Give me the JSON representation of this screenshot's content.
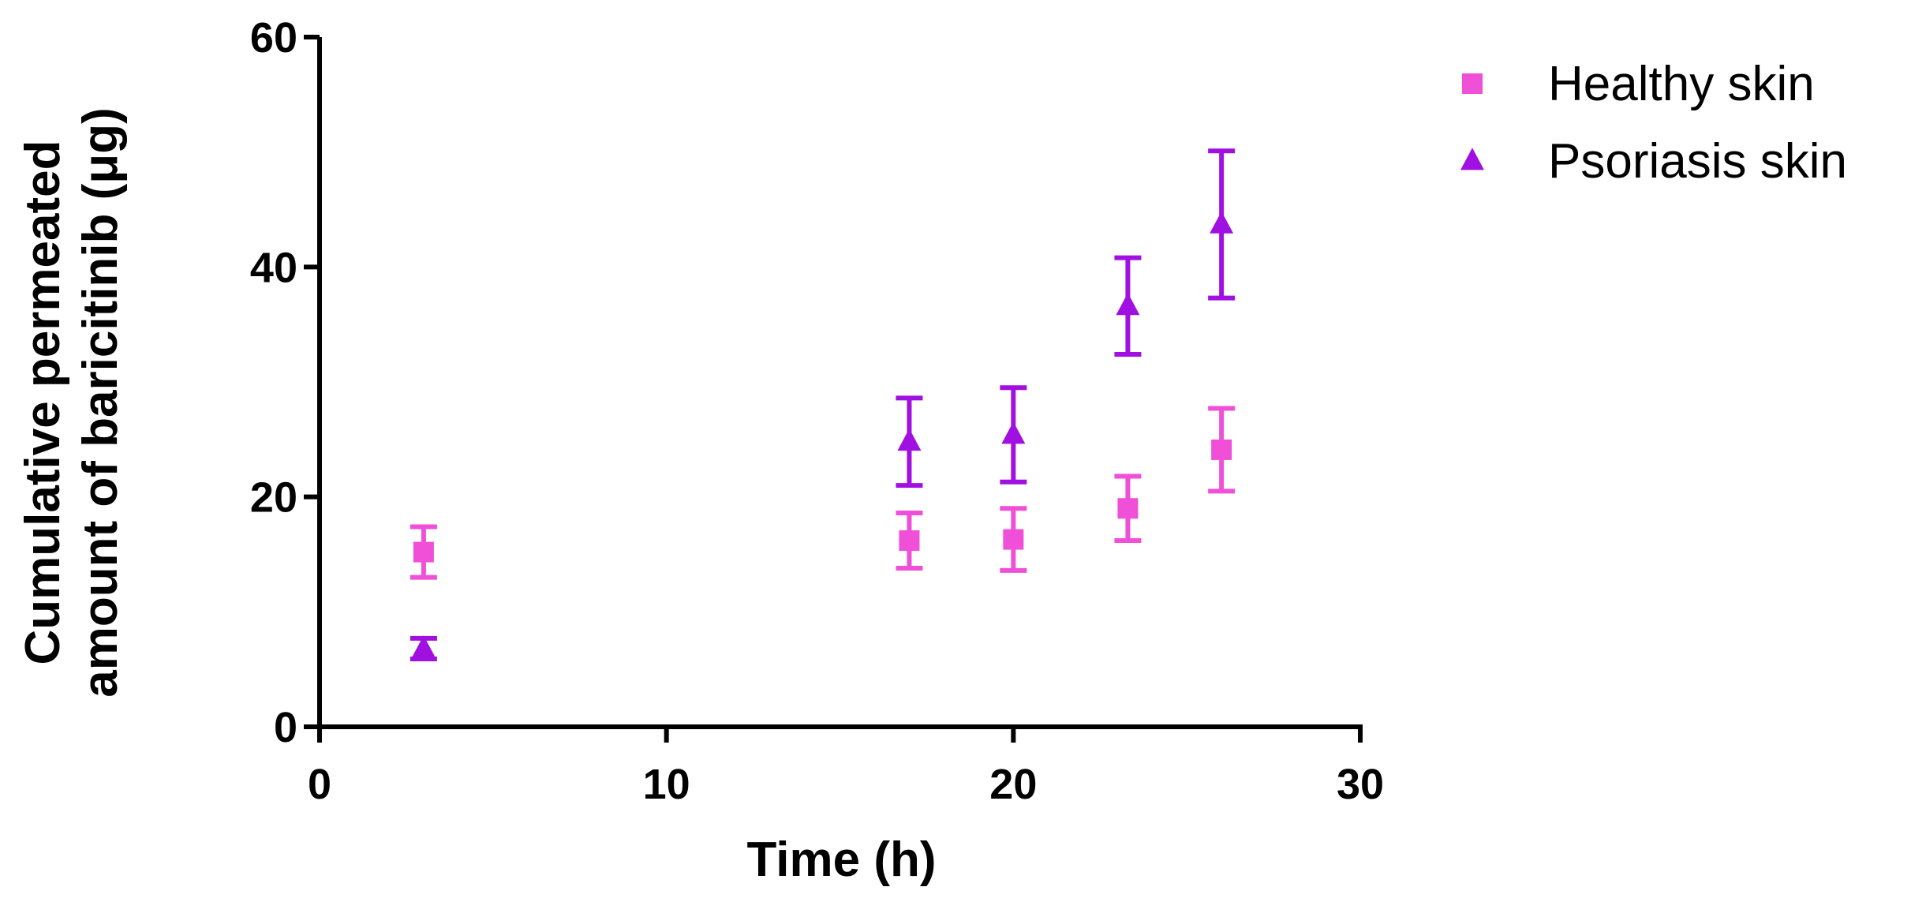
{
  "chart_data": {
    "type": "scatter",
    "title": "",
    "xlabel": "Time (h)",
    "ylabel_lines": [
      "Cumulative permeated",
      "amount of baricitinib (μg)"
    ],
    "xlim": [
      0,
      30
    ],
    "ylim": [
      0,
      60
    ],
    "xticks": [
      0,
      10,
      20,
      30
    ],
    "yticks": [
      0,
      20,
      40,
      60
    ],
    "grid": false,
    "error_bars": true,
    "legend_position": "top-right outside",
    "series": [
      {
        "name": "Healthy skin",
        "marker": "square",
        "color": "#F050D8",
        "x": [
          3,
          17,
          20,
          23.3,
          26
        ],
        "y": [
          15.2,
          16.2,
          16.3,
          19.0,
          24.1
        ],
        "error": [
          2.2,
          2.4,
          2.7,
          2.8,
          3.6
        ]
      },
      {
        "name": "Psoriasis skin",
        "marker": "triangle",
        "color": "#A010E0",
        "x": [
          3,
          17,
          20,
          23.3,
          26
        ],
        "y": [
          6.8,
          24.8,
          25.4,
          36.6,
          43.7
        ],
        "error": [
          0.9,
          3.8,
          4.1,
          4.2,
          6.4
        ]
      }
    ]
  }
}
